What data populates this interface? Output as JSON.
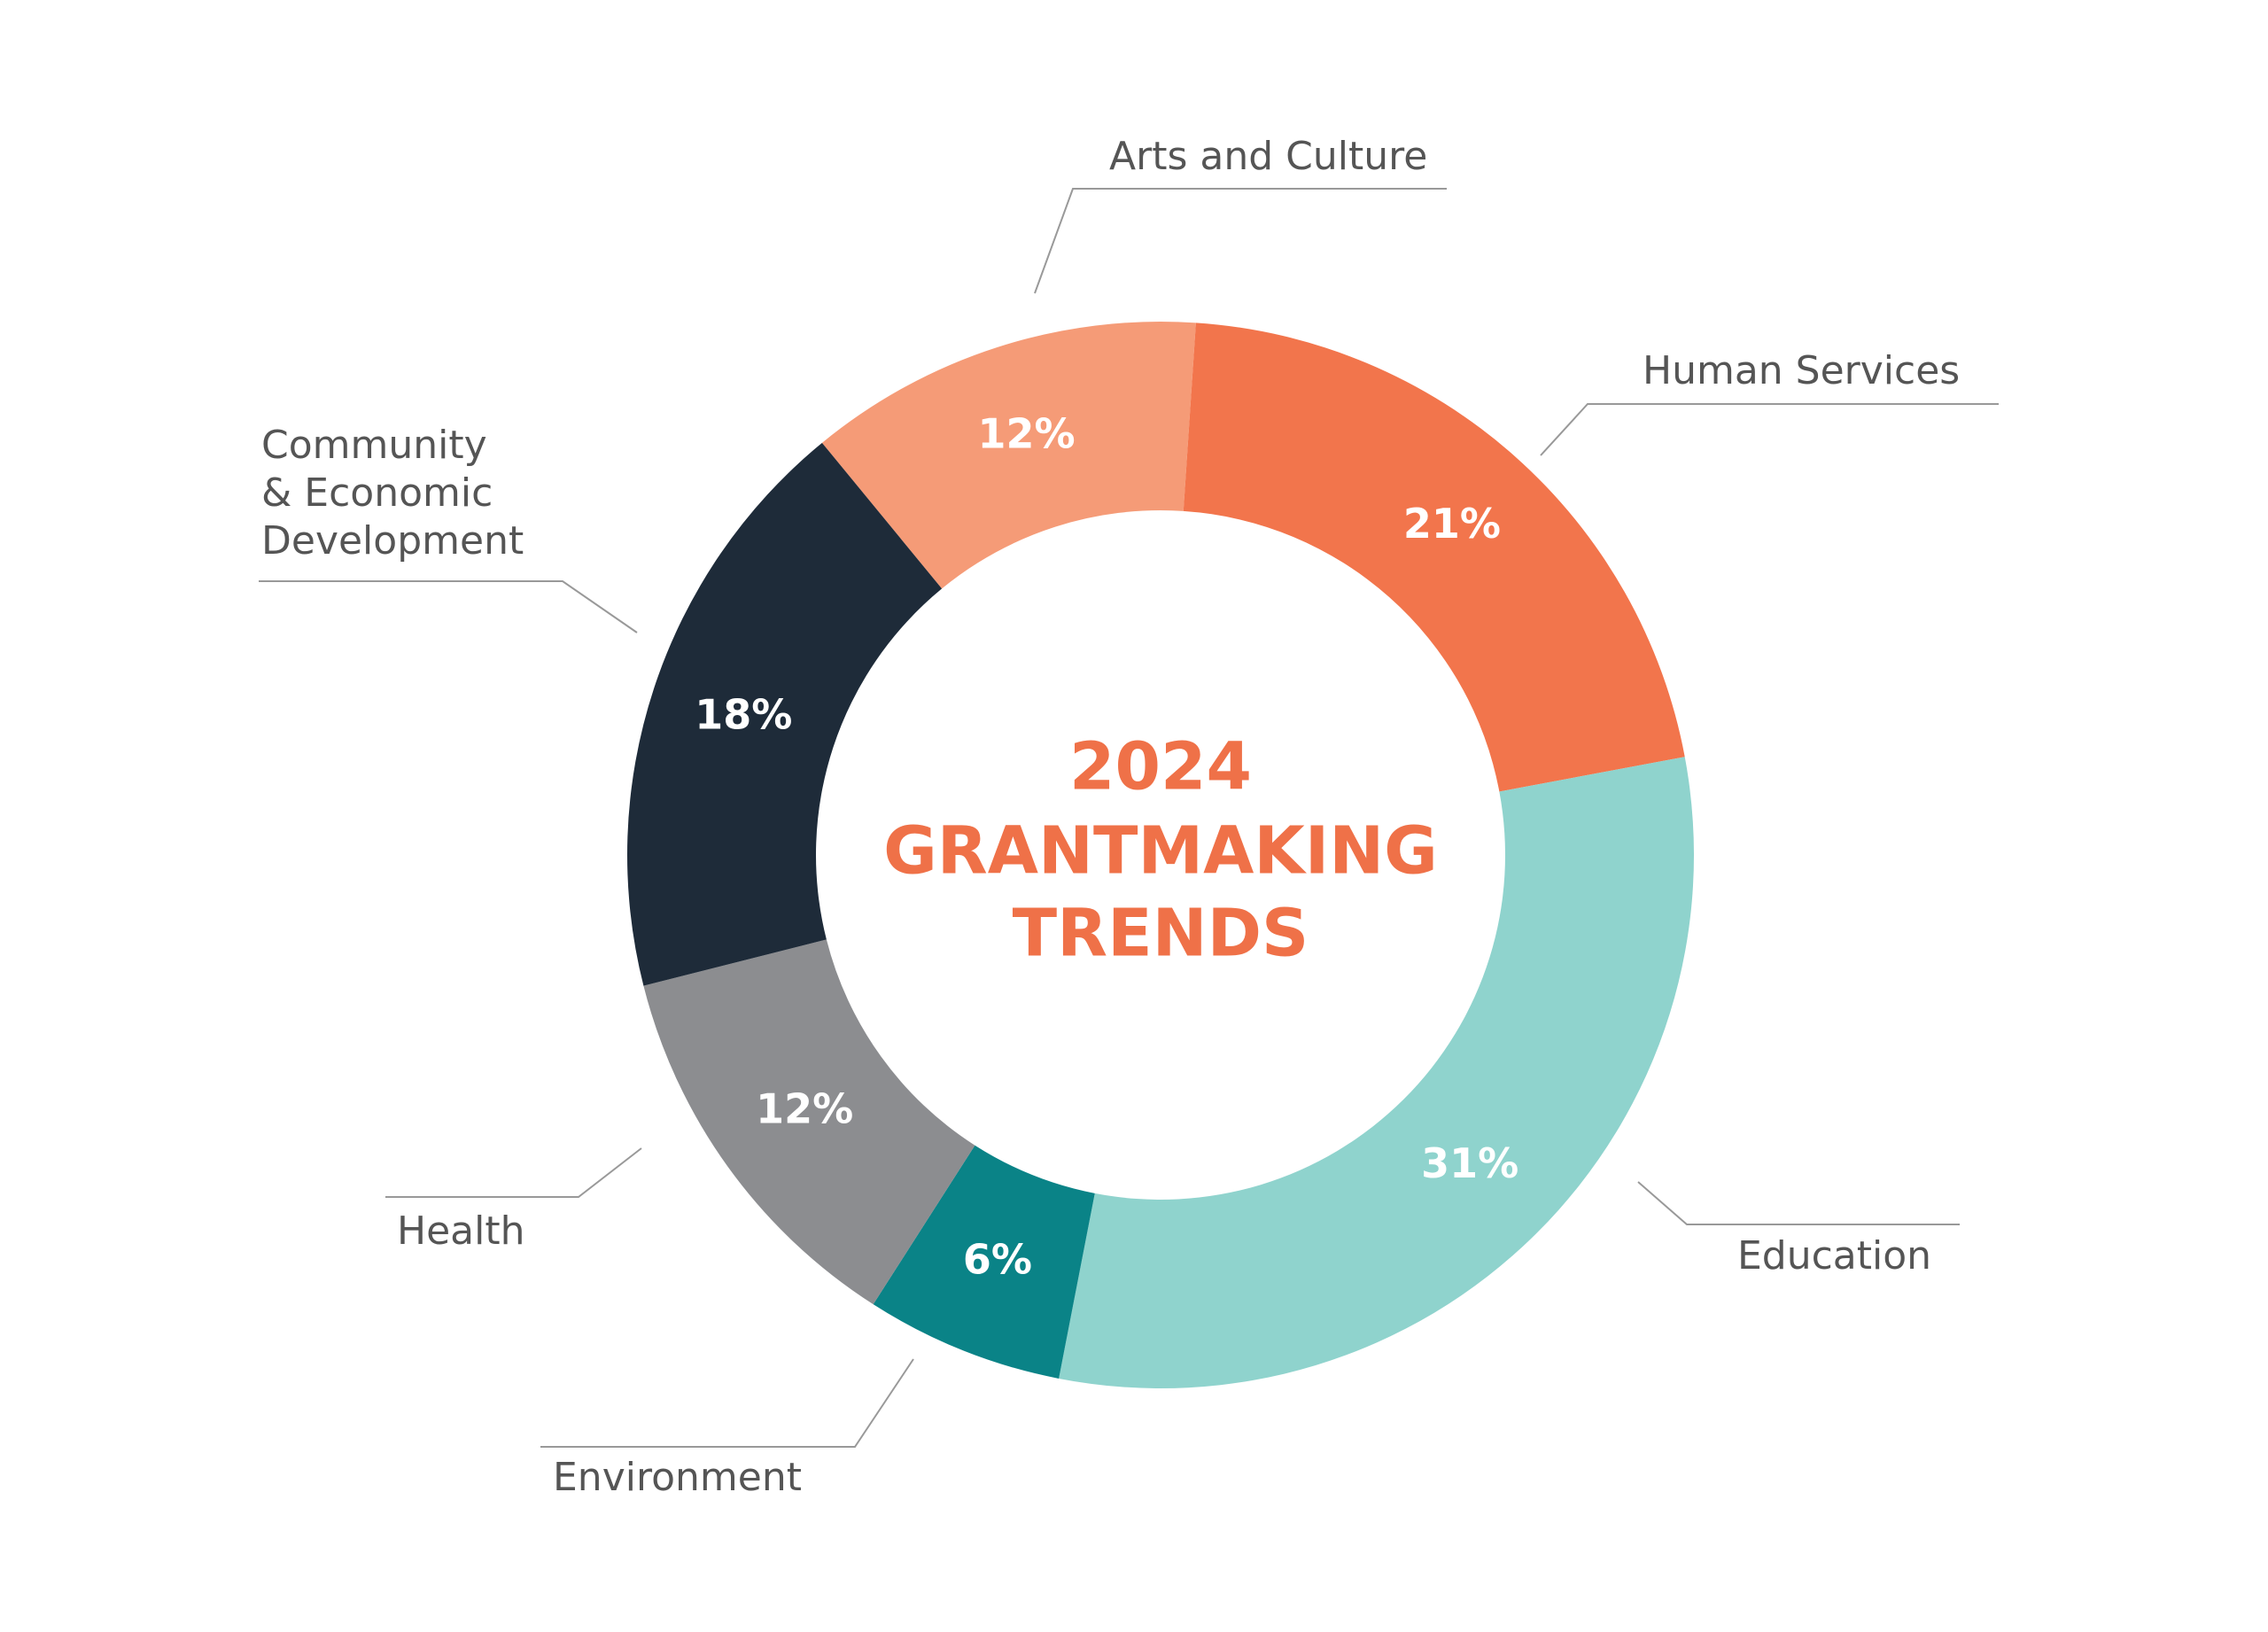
{
  "chart_data": {
    "type": "donut",
    "title": [
      "2024",
      "GRANTMAKING",
      "TRENDS"
    ],
    "categories": [
      "Arts and Culture",
      "Human Services",
      "Education",
      "Environment",
      "Health",
      "Community\n& Economic\nDevelopment"
    ],
    "values": [
      12,
      21,
      31,
      6,
      12,
      18
    ],
    "value_labels": [
      "12%",
      "21%",
      "31%",
      "6%",
      "12%",
      "18%"
    ],
    "colors": [
      "#f59b77",
      "#f2754c",
      "#8fd3cd",
      "#0a8387",
      "#8c8d90",
      "#1e2b39"
    ]
  }
}
